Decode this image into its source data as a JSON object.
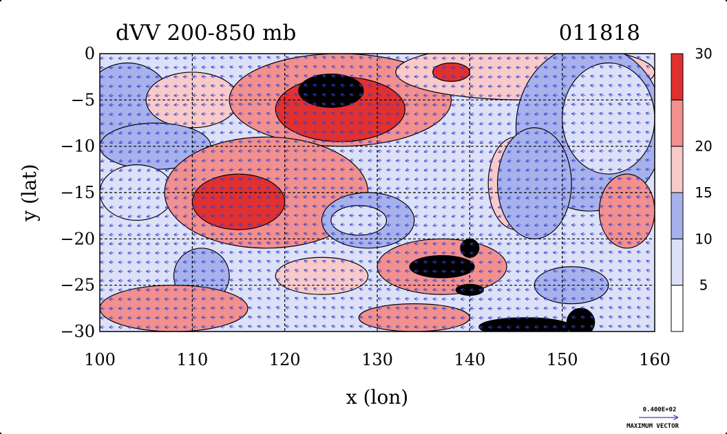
{
  "chart_data": {
    "type": "heatmap",
    "title": "dVV 200-850 mb",
    "date_label": "011818",
    "xlabel": "x (lon)",
    "ylabel": "y (lat)",
    "xlim": [
      100,
      160
    ],
    "ylim": [
      -30,
      0
    ],
    "x_ticks": [
      100,
      110,
      120,
      130,
      140,
      150,
      160
    ],
    "x_tick_labels": [
      "100",
      "110",
      "120",
      "130",
      "140",
      "150",
      "160"
    ],
    "y_ticks": [
      0,
      -5,
      -10,
      -15,
      -20,
      -25,
      -30
    ],
    "y_tick_labels": [
      "0",
      "−5",
      "−10",
      "−15",
      "−20",
      "−25",
      "−30"
    ],
    "grid": true,
    "colorbar": {
      "placement": "right",
      "levels": [
        5,
        10,
        15,
        20,
        25,
        30
      ],
      "labels": [
        "5",
        "10",
        "15",
        "20",
        "30"
      ],
      "label_levels": [
        5,
        10,
        15,
        20,
        30
      ],
      "colors": [
        "#ffffff",
        "#dde1f7",
        "#a7b1ec",
        "#f9caca",
        "#f1908f",
        "#e0302f"
      ]
    },
    "vector_key": {
      "value_label": "0.400E+02",
      "label": "MAXIMUM VECTOR"
    },
    "blobs": [
      {
        "cx": 103,
        "cy": -6,
        "rx": 5,
        "ry": 5,
        "level": 2
      },
      {
        "cx": 110,
        "cy": -5,
        "rx": 5,
        "ry": 3,
        "level": 3
      },
      {
        "cx": 126,
        "cy": -5,
        "rx": 12,
        "ry": 5,
        "level": 4
      },
      {
        "cx": 126,
        "cy": -6,
        "rx": 7,
        "ry": 3.5,
        "level": 5
      },
      {
        "cx": 125,
        "cy": -4,
        "rx": 3.5,
        "ry": 1.8,
        "level": 6
      },
      {
        "cx": 146,
        "cy": -2,
        "rx": 14,
        "ry": 3,
        "level": 3
      },
      {
        "cx": 138,
        "cy": -2,
        "rx": 2,
        "ry": 1,
        "level": 5
      },
      {
        "cx": 153,
        "cy": -8,
        "rx": 8,
        "ry": 9,
        "level": 2
      },
      {
        "cx": 155,
        "cy": -7,
        "rx": 5,
        "ry": 6,
        "level": 1
      },
      {
        "cx": 106,
        "cy": -10,
        "rx": 6,
        "ry": 2.5,
        "level": 2
      },
      {
        "cx": 104,
        "cy": -15,
        "rx": 4,
        "ry": 3,
        "level": 1
      },
      {
        "cx": 118,
        "cy": -15,
        "rx": 11,
        "ry": 6,
        "level": 4
      },
      {
        "cx": 115,
        "cy": -16,
        "rx": 5,
        "ry": 3,
        "level": 5
      },
      {
        "cx": 129,
        "cy": -18,
        "rx": 5,
        "ry": 3,
        "level": 2
      },
      {
        "cx": 128,
        "cy": -18,
        "rx": 3,
        "ry": 1.6,
        "level": 1
      },
      {
        "cx": 145,
        "cy": -14,
        "rx": 3,
        "ry": 5,
        "level": 3
      },
      {
        "cx": 147,
        "cy": -14,
        "rx": 4,
        "ry": 6,
        "level": 2
      },
      {
        "cx": 157,
        "cy": -17,
        "rx": 3,
        "ry": 4,
        "level": 4
      },
      {
        "cx": 111,
        "cy": -24,
        "rx": 3,
        "ry": 3,
        "level": 2
      },
      {
        "cx": 124,
        "cy": -24,
        "rx": 5,
        "ry": 2,
        "level": 3
      },
      {
        "cx": 137,
        "cy": -23,
        "rx": 7,
        "ry": 3,
        "level": 4
      },
      {
        "cx": 137,
        "cy": -23,
        "rx": 3.5,
        "ry": 1.2,
        "level": 6
      },
      {
        "cx": 140,
        "cy": -21,
        "rx": 1,
        "ry": 1,
        "level": 6
      },
      {
        "cx": 140,
        "cy": -25.5,
        "rx": 1.5,
        "ry": 0.6,
        "level": 6
      },
      {
        "cx": 151,
        "cy": -25,
        "rx": 4,
        "ry": 2,
        "level": 2
      },
      {
        "cx": 108,
        "cy": -27.5,
        "rx": 8,
        "ry": 2.5,
        "level": 4
      },
      {
        "cx": 134,
        "cy": -28.5,
        "rx": 6,
        "ry": 1.5,
        "level": 4
      },
      {
        "cx": 146,
        "cy": -29.5,
        "rx": 5,
        "ry": 1,
        "level": 6
      },
      {
        "cx": 152,
        "cy": -29,
        "rx": 1.5,
        "ry": 1.5,
        "level": 6
      }
    ]
  }
}
